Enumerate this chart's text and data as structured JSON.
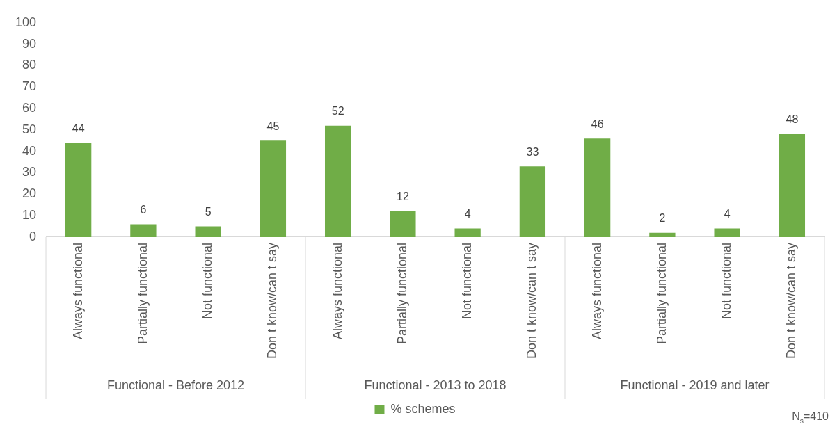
{
  "chart_data": {
    "type": "bar",
    "categories": [
      "Always functional",
      "Partially functional",
      "Not functional",
      "Don t know/can t say",
      "Always functional",
      "Partially functional",
      "Not functional",
      "Don t know/can t say",
      "Always functional",
      "Partially functional",
      "Not functional",
      "Don t know/can t say"
    ],
    "series": [
      {
        "name": "% schemes",
        "color": "#70ad47",
        "values": [
          44,
          6,
          5,
          45,
          52,
          12,
          4,
          33,
          46,
          2,
          4,
          48
        ]
      }
    ],
    "ylim": [
      0,
      100
    ],
    "yticks": [
      0,
      10,
      20,
      30,
      40,
      50,
      60,
      70,
      80,
      90,
      100
    ],
    "data_labels": true,
    "grid": false,
    "legend": "bottom",
    "annotations": [
      "Functional - Before 2012",
      "Functional - 2013 to 2018",
      "Functional - 2019 and later",
      "N$_{s}$=410"
    ]
  }
}
